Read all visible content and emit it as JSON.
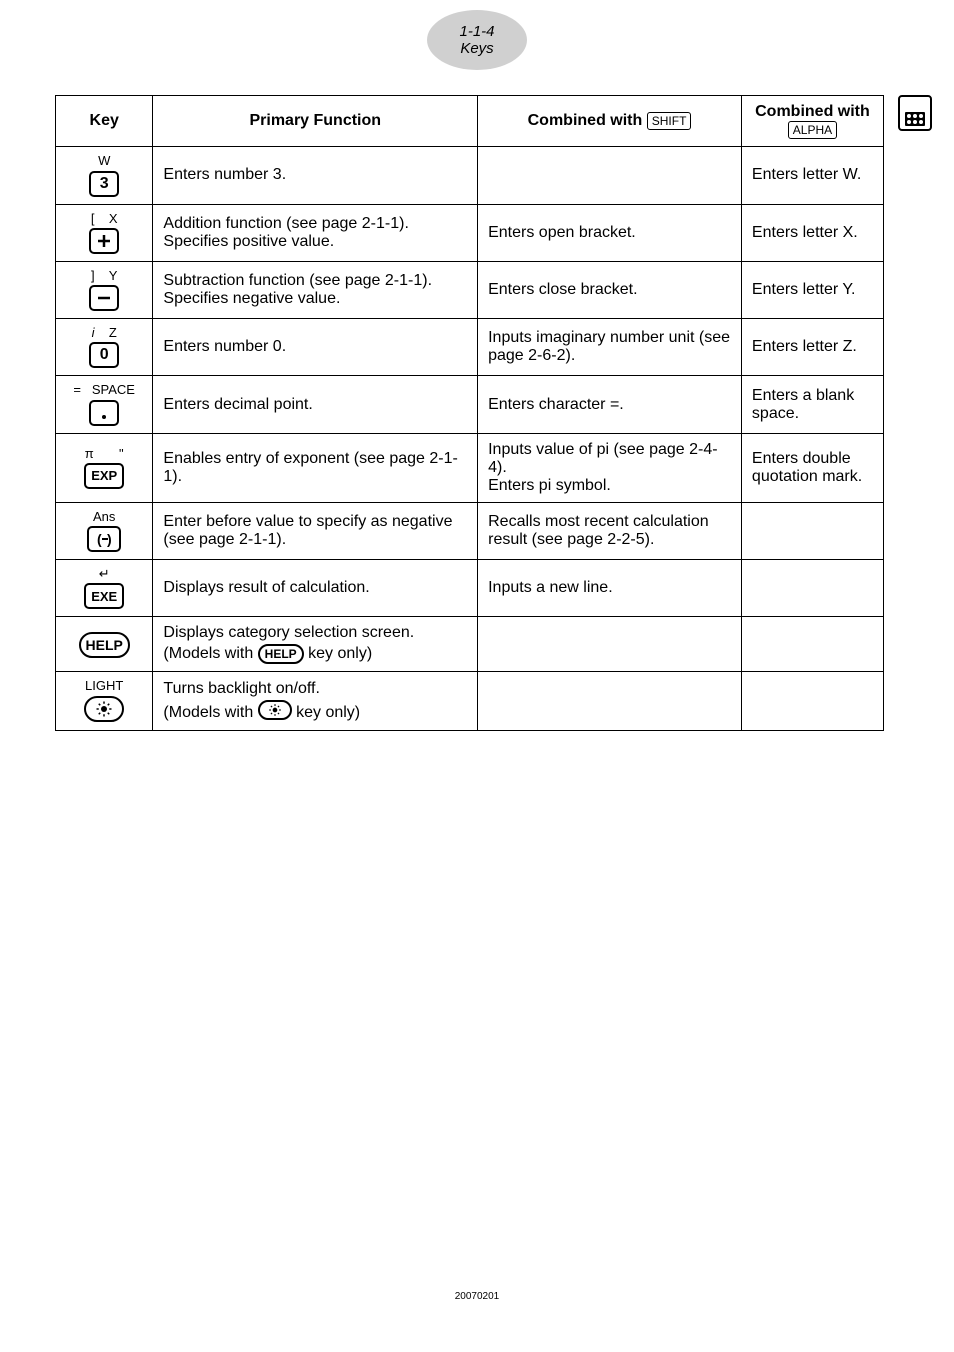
{
  "header": {
    "line1": "1-1-4",
    "line2": "Keys"
  },
  "footer": "20070201",
  "table": {
    "headers": {
      "key": "Key",
      "primary": "Primary Function",
      "shift_prefix": "Combined with ",
      "shift_label": "SHIFT",
      "alpha_prefix": "Combined with",
      "alpha_label": "ALPHA"
    },
    "rows": [
      {
        "super": "W",
        "keyglyph": "3",
        "keystyle": "normal",
        "primary": "Enters number 3.",
        "shift": "",
        "alpha": "Enters letter W."
      },
      {
        "super": "[    X",
        "keyglyph": "plus",
        "keystyle": "normal",
        "primary": "Addition function (see page 2-1-1). Specifies positive value.",
        "shift": "Enters open bracket.",
        "alpha": "Enters letter X."
      },
      {
        "super": "]    Y",
        "keyglyph": "minus",
        "keystyle": "normal",
        "primary": "Subtraction function (see page 2-1-1).\nSpecifies negative value.",
        "shift": "Enters close bracket.",
        "alpha": "Enters letter Y."
      },
      {
        "super_html": "<i>i</i>    Z",
        "keyglyph": "0",
        "keystyle": "normal",
        "primary": "Enters number 0.",
        "shift": "Inputs imaginary number unit (see page 2-6-2).",
        "alpha": "Enters letter Z."
      },
      {
        "super": "=   SPACE",
        "keyglyph": "dot",
        "keystyle": "normal",
        "primary": "Enters decimal point.",
        "shift": "Enters character =.",
        "alpha": "Enters a blank space."
      },
      {
        "super": "π       \"",
        "keyglyph": "EXP",
        "keystyle": "exp",
        "primary": "Enables entry of exponent (see page 2-1-1).",
        "shift": "Inputs value of pi (see page 2-4-4).\nEnters pi symbol.",
        "alpha": "Enters double quotation mark."
      },
      {
        "super": "Ans",
        "keyglyph": "neg",
        "keystyle": "normal",
        "primary": "Enter before value to specify as negative (see page 2-1-1).",
        "shift": "Recalls most recent calculation result (see page 2-2-5).",
        "alpha": ""
      },
      {
        "super": "↵",
        "keyglyph": "EXE",
        "keystyle": "exe",
        "primary": "Displays result of calculation.",
        "shift": "Inputs a new line.",
        "alpha": ""
      },
      {
        "super": "",
        "keyglyph": "HELP",
        "keystyle": "help",
        "primary_html": "Displays category selection screen. (Models with <span class=\"help-key key-box\" style=\"min-width:44px;height:20px;font-size:12px\">HELP</span> key only)",
        "shift": "",
        "alpha": ""
      },
      {
        "super": "LIGHT",
        "keyglyph": "light",
        "keystyle": "light",
        "primary_html": "Turns backlight on/off.<br>(Models with <span class=\"light-key key-box\" style=\"min-width:34px;height:20px\"><svg width=\"14\" height=\"14\" viewBox=\"0 0 24 24\"><circle cx=\"12\" cy=\"12\" r=\"4\" fill=\"#000\"/><g stroke=\"#000\" stroke-width=\"2\"><line x1=\"12\" y1=\"2\" x2=\"12\" y2=\"5\"/><line x1=\"12\" y1=\"19\" x2=\"12\" y2=\"22\"/><line x1=\"2\" y1=\"12\" x2=\"5\" y2=\"12\"/><line x1=\"19\" y1=\"12\" x2=\"22\" y2=\"12\"/><line x1=\"5\" y1=\"5\" x2=\"7\" y2=\"7\"/><line x1=\"17\" y1=\"17\" x2=\"19\" y2=\"19\"/><line x1=\"5\" y1=\"19\" x2=\"7\" y2=\"17\"/><line x1=\"17\" y1=\"7\" x2=\"19\" y2=\"5\"/></g></svg></span> key only)",
        "shift": "",
        "alpha": ""
      }
    ]
  }
}
